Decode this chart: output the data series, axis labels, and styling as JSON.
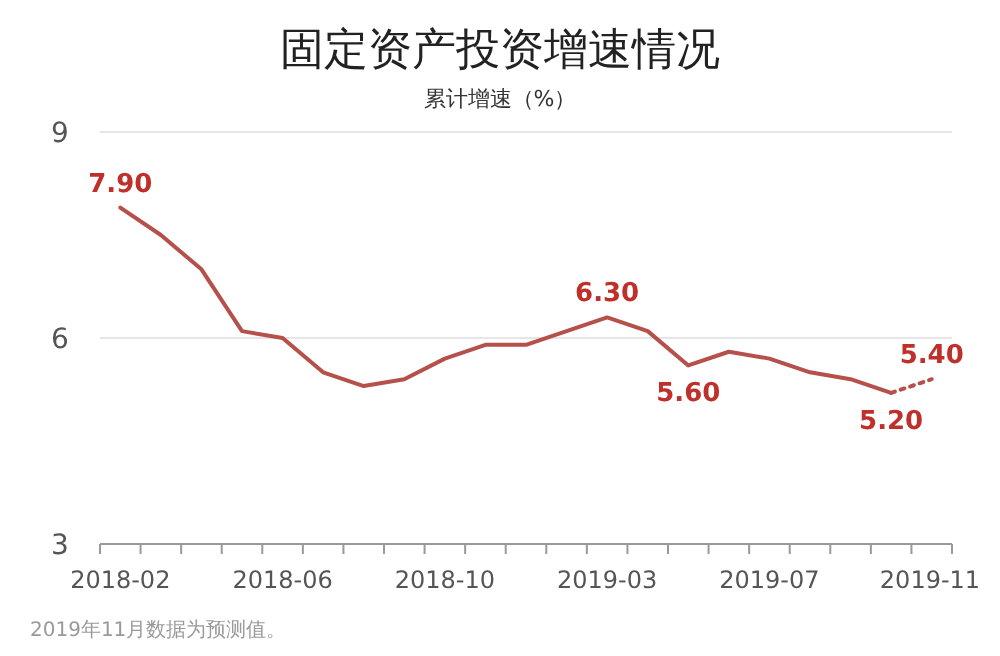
{
  "chart_data": {
    "type": "line",
    "title": "固定资产投资增速情况",
    "subtitle": "累计增速（%）",
    "categories": [
      "2018-02",
      null,
      null,
      null,
      "2018-06",
      null,
      null,
      null,
      "2018-10",
      null,
      null,
      null,
      "2019-03",
      null,
      null,
      null,
      "2019-07",
      null,
      null,
      null,
      "2019-11"
    ],
    "series": [
      {
        "color": "#b5504a",
        "line_style": "solid",
        "values": [
          7.9,
          7.5,
          7.0,
          6.1,
          6.0,
          5.5,
          5.3,
          5.4,
          5.7,
          5.9,
          5.9,
          6.1,
          6.3,
          6.1,
          5.6,
          5.8,
          5.7,
          5.5,
          5.4,
          5.2,
          null
        ],
        "value_labels": [
          "7.90",
          null,
          null,
          null,
          null,
          null,
          null,
          null,
          null,
          null,
          null,
          null,
          "6.30",
          null,
          "5.60",
          null,
          null,
          null,
          null,
          "5.20",
          null
        ]
      },
      {
        "color": "#b5504a",
        "line_style": "dotted",
        "values": [
          null,
          null,
          null,
          null,
          null,
          null,
          null,
          null,
          null,
          null,
          null,
          null,
          null,
          null,
          null,
          null,
          null,
          null,
          null,
          5.2,
          5.4
        ],
        "value_labels": [
          null,
          null,
          null,
          null,
          null,
          null,
          null,
          null,
          null,
          null,
          null,
          null,
          null,
          null,
          null,
          null,
          null,
          null,
          null,
          null,
          "5.40"
        ]
      }
    ],
    "ylim": [
      3,
      9
    ],
    "yticks": [
      3,
      6,
      9
    ],
    "grid": "y",
    "annotations": [
      "2019年11月数据为预测值。"
    ]
  }
}
